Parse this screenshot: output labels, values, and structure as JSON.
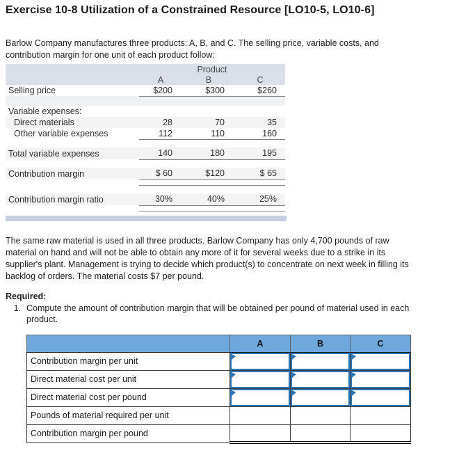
{
  "title": "Exercise 10-8 Utilization of a Constrained Resource [LO10-5, LO10-6]",
  "intro": "Barlow Company manufactures three products: A, B, and C. The selling price, variable costs, and\ncontribution margin for one unit of each product follow:",
  "product_table": {
    "group_header": "Product",
    "columns": [
      "A",
      "B",
      "C"
    ],
    "rows": [
      {
        "label": "Selling price",
        "values": [
          "$200",
          "$300",
          "$260"
        ]
      },
      {
        "label": "Variable expenses:",
        "values": [
          "",
          "",
          ""
        ]
      },
      {
        "label": "Direct materials",
        "values": [
          "28",
          "70",
          "35"
        ]
      },
      {
        "label": "Other variable expenses",
        "values": [
          "112",
          "110",
          "160"
        ]
      },
      {
        "label": "Total variable expenses",
        "values": [
          "140",
          "180",
          "195"
        ]
      },
      {
        "label": "Contribution margin",
        "values": [
          "$ 60",
          "$120",
          "$ 65"
        ]
      },
      {
        "label": "Contribution margin ratio",
        "values": [
          "30%",
          "40%",
          "25%"
        ]
      }
    ]
  },
  "scenario": "The same raw material is used in all three products. Barlow Company has only 4,700 pounds of raw\nmaterial on hand and will not be able to obtain any more of it for several weeks due to a strike in its\nsupplier's plant. Management is trying to decide which product(s) to concentrate on next week in filling its\nbacklog of orders. The material costs $7 per pound.",
  "required": {
    "label": "Required:",
    "items": [
      {
        "number": "1.",
        "text": "Compute the amount of contribution margin that will be obtained per pound of material used in each\nproduct."
      }
    ]
  },
  "answer_table": {
    "columns": [
      "A",
      "B",
      "C"
    ],
    "rows": [
      {
        "label": "Contribution margin per unit",
        "input": true,
        "values": [
          "",
          "",
          ""
        ]
      },
      {
        "label": "Direct material cost per unit",
        "input": true,
        "values": [
          "",
          "",
          ""
        ]
      },
      {
        "label": "Direct material cost per pound",
        "input": true,
        "values": [
          "",
          "",
          ""
        ]
      },
      {
        "label": "Pounds of material required per unit",
        "input": false,
        "values": [
          "",
          "",
          ""
        ]
      },
      {
        "label": "Contribution margin per pound",
        "input": false,
        "values": [
          "",
          "",
          ""
        ]
      }
    ]
  },
  "colors": {
    "t1_header_bg": "#dbdfe9",
    "t2_header_bg": "#6fa8dc",
    "input_blue": "#2e75b6",
    "divider": "#c6cfe0"
  }
}
